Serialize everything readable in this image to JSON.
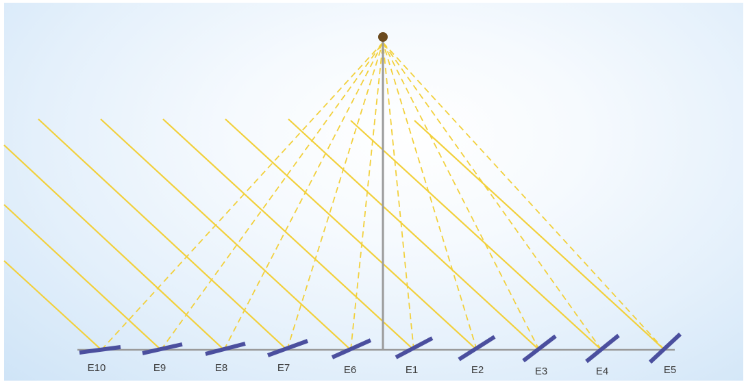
{
  "diagram": {
    "colors": {
      "ray": "#f2d03b",
      "ray_dashed": "#f2d03b",
      "mirror": "#4b4f9e",
      "ground": "#9a9a9a",
      "tower": "#9a9a9a",
      "receiver": "#6b4a1e"
    },
    "heliostats": [
      {
        "id": "E10",
        "label": "E10"
      },
      {
        "id": "E9",
        "label": "E9"
      },
      {
        "id": "E8",
        "label": "E8"
      },
      {
        "id": "E7",
        "label": "E7"
      },
      {
        "id": "E6",
        "label": "E6"
      },
      {
        "id": "E1",
        "label": "E1"
      },
      {
        "id": "E2",
        "label": "E2"
      },
      {
        "id": "E3",
        "label": "E3"
      },
      {
        "id": "E4",
        "label": "E4"
      },
      {
        "id": "E5",
        "label": "E5"
      }
    ]
  }
}
